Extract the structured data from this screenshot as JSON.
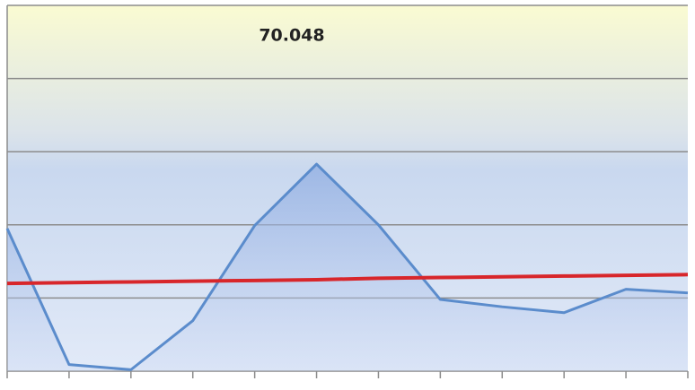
{
  "chart_data": {
    "type": "line",
    "annotation": "70.048",
    "categories": [
      null,
      null,
      null,
      null,
      null,
      null,
      null,
      null,
      null,
      null,
      null,
      null
    ],
    "series": [
      {
        "color": "#5b8ccc",
        "values": [
          1.95,
          0.09,
          0.02,
          0.69,
          1.99,
          2.83,
          2.0,
          0.98,
          0.88,
          0.8,
          1.12,
          1.07
        ]
      },
      {
        "color": "#d8262b",
        "values": [
          1.2,
          1.21,
          1.22,
          1.23,
          1.24,
          1.25,
          1.27,
          1.28,
          1.29,
          1.3,
          1.31,
          1.32
        ]
      }
    ],
    "ylim": [
      0,
      5
    ],
    "yticks": [
      0,
      1,
      2,
      3,
      4,
      5
    ],
    "grid": true
  }
}
